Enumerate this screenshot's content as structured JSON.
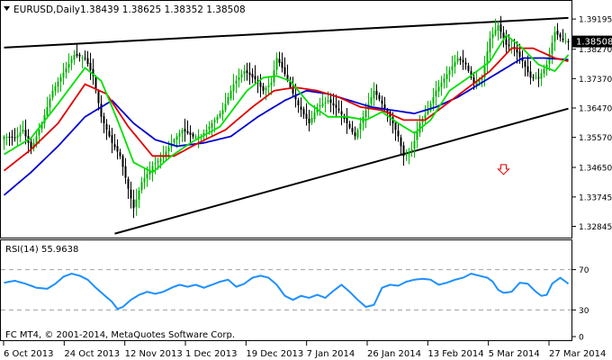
{
  "header": {
    "symbol": "EURUSD,Daily",
    "ohlc": "1.38439 1.38625 1.38352 1.38508"
  },
  "current_price": "1.38508",
  "footer": "FC MT4, © 2001-2014, MetaQuotes Software Corp.",
  "colors": {
    "bull": "#00b400",
    "bear": "#000000",
    "ma_fast": "#00e000",
    "ma_mid": "#e00000",
    "ma_slow": "#0000d0",
    "trendline": "#000000",
    "rsi_line": "#1e90ff",
    "arrow": "#e00000"
  },
  "chart_data": [
    {
      "type": "candlestick",
      "title": "EURUSD,Daily",
      "x_ticks": [
        "6 Oct 2013",
        "24 Oct 2013",
        "12 Nov 2013",
        "1 Dec 2013",
        "19 Dec 2013",
        "7 Jan 2014",
        "26 Jan 2014",
        "13 Feb 2014",
        "5 Mar 2014",
        "27 Mar 2014"
      ],
      "y_ticks": [
        "1.39195",
        "1.38270",
        "1.37370",
        "1.36470",
        "1.35570",
        "1.34650",
        "1.33745",
        "1.32845"
      ],
      "ylim": [
        1.325,
        1.3975
      ],
      "last": 1.38508,
      "close_path": [
        [
          0,
          1.356
        ],
        [
          4,
          1.3555
        ],
        [
          7,
          1.358
        ],
        [
          10,
          1.352
        ],
        [
          14,
          1.36
        ],
        [
          18,
          1.37
        ],
        [
          22,
          1.3755
        ],
        [
          26,
          1.381
        ],
        [
          30,
          1.38
        ],
        [
          33,
          1.3745
        ],
        [
          36,
          1.362
        ],
        [
          40,
          1.354
        ],
        [
          43,
          1.35
        ],
        [
          46,
          1.34
        ],
        [
          48,
          1.334
        ],
        [
          51,
          1.342
        ],
        [
          55,
          1.347
        ],
        [
          59,
          1.35
        ],
        [
          62,
          1.354
        ],
        [
          66,
          1.358
        ],
        [
          70,
          1.356
        ],
        [
          73,
          1.356
        ],
        [
          77,
          1.36
        ],
        [
          81,
          1.364
        ],
        [
          85,
          1.372
        ],
        [
          89,
          1.376
        ],
        [
          93,
          1.3735
        ],
        [
          96,
          1.37
        ],
        [
          99,
          1.3725
        ],
        [
          101,
          1.38
        ],
        [
          103,
          1.377
        ],
        [
          106,
          1.371
        ],
        [
          109,
          1.3655
        ],
        [
          113,
          1.36
        ],
        [
          116,
          1.365
        ],
        [
          120,
          1.367
        ],
        [
          124,
          1.364
        ],
        [
          127,
          1.36
        ],
        [
          130,
          1.356
        ],
        [
          133,
          1.362
        ],
        [
          137,
          1.37
        ],
        [
          140,
          1.366
        ],
        [
          143,
          1.362
        ],
        [
          146,
          1.356
        ],
        [
          148,
          1.35
        ],
        [
          151,
          1.352
        ],
        [
          154,
          1.36
        ],
        [
          157,
          1.364
        ],
        [
          160,
          1.37
        ],
        [
          164,
          1.375
        ],
        [
          168,
          1.38
        ],
        [
          171,
          1.378
        ],
        [
          174,
          1.372
        ],
        [
          177,
          1.374
        ],
        [
          180,
          1.386
        ],
        [
          183,
          1.39
        ],
        [
          186,
          1.384
        ],
        [
          189,
          1.383
        ],
        [
          192,
          1.379
        ],
        [
          195,
          1.374
        ],
        [
          198,
          1.374
        ],
        [
          201,
          1.378
        ],
        [
          204,
          1.388
        ],
        [
          207,
          1.3855
        ],
        [
          209,
          1.3851
        ]
      ],
      "ma_fast_path": [
        [
          0,
          1.3505
        ],
        [
          10,
          1.3555
        ],
        [
          20,
          1.366
        ],
        [
          30,
          1.377
        ],
        [
          36,
          1.373
        ],
        [
          42,
          1.361
        ],
        [
          48,
          1.348
        ],
        [
          55,
          1.345
        ],
        [
          62,
          1.35
        ],
        [
          70,
          1.3545
        ],
        [
          80,
          1.359
        ],
        [
          90,
          1.37
        ],
        [
          96,
          1.374
        ],
        [
          101,
          1.3745
        ],
        [
          106,
          1.373
        ],
        [
          113,
          1.366
        ],
        [
          120,
          1.362
        ],
        [
          127,
          1.362
        ],
        [
          134,
          1.361
        ],
        [
          140,
          1.3635
        ],
        [
          146,
          1.36
        ],
        [
          152,
          1.357
        ],
        [
          158,
          1.361
        ],
        [
          165,
          1.37
        ],
        [
          172,
          1.374
        ],
        [
          180,
          1.379
        ],
        [
          186,
          1.387
        ],
        [
          192,
          1.383
        ],
        [
          198,
          1.378
        ],
        [
          204,
          1.376
        ],
        [
          209,
          1.381
        ]
      ],
      "ma_mid_path": [
        [
          0,
          1.3455
        ],
        [
          10,
          1.352
        ],
        [
          20,
          1.36
        ],
        [
          30,
          1.372
        ],
        [
          38,
          1.369
        ],
        [
          46,
          1.359
        ],
        [
          55,
          1.35
        ],
        [
          63,
          1.35
        ],
        [
          72,
          1.354
        ],
        [
          82,
          1.358
        ],
        [
          92,
          1.365
        ],
        [
          100,
          1.37
        ],
        [
          108,
          1.371
        ],
        [
          116,
          1.37
        ],
        [
          124,
          1.368
        ],
        [
          132,
          1.365
        ],
        [
          140,
          1.364
        ],
        [
          148,
          1.361
        ],
        [
          156,
          1.361
        ],
        [
          164,
          1.366
        ],
        [
          172,
          1.371
        ],
        [
          180,
          1.376
        ],
        [
          188,
          1.383
        ],
        [
          196,
          1.383
        ],
        [
          204,
          1.38
        ],
        [
          209,
          1.379
        ]
      ],
      "ma_slow_path": [
        [
          0,
          1.338
        ],
        [
          10,
          1.345
        ],
        [
          20,
          1.353
        ],
        [
          30,
          1.362
        ],
        [
          40,
          1.367
        ],
        [
          48,
          1.36
        ],
        [
          56,
          1.355
        ],
        [
          64,
          1.353
        ],
        [
          74,
          1.354
        ],
        [
          84,
          1.356
        ],
        [
          94,
          1.362
        ],
        [
          104,
          1.367
        ],
        [
          112,
          1.37
        ],
        [
          120,
          1.369
        ],
        [
          128,
          1.367
        ],
        [
          136,
          1.365
        ],
        [
          144,
          1.364
        ],
        [
          152,
          1.363
        ],
        [
          160,
          1.365
        ],
        [
          168,
          1.368
        ],
        [
          176,
          1.372
        ],
        [
          184,
          1.376
        ],
        [
          192,
          1.38
        ],
        [
          200,
          1.38
        ],
        [
          209,
          1.3795
        ]
      ],
      "trend_top": [
        [
          0,
          1.3832
        ],
        [
          209,
          1.3923
        ]
      ],
      "trend_bottom": [
        [
          41,
          1.3262
        ],
        [
          209,
          1.3645
        ]
      ],
      "down_arrow": [
        185,
        1.346
      ]
    },
    {
      "type": "line",
      "title": "RSI(14) 55.9638",
      "ylim": [
        0,
        100
      ],
      "y_ticks": [
        "70",
        "30",
        "0"
      ],
      "levels": [
        70,
        30
      ],
      "rsi_path": [
        [
          0,
          57
        ],
        [
          4,
          59
        ],
        [
          8,
          56
        ],
        [
          12,
          52
        ],
        [
          16,
          51
        ],
        [
          19,
          56
        ],
        [
          22,
          63
        ],
        [
          25,
          66
        ],
        [
          28,
          64
        ],
        [
          31,
          60
        ],
        [
          34,
          52
        ],
        [
          37,
          45
        ],
        [
          40,
          38
        ],
        [
          42,
          31
        ],
        [
          44,
          33
        ],
        [
          47,
          40
        ],
        [
          50,
          45
        ],
        [
          53,
          48
        ],
        [
          56,
          46
        ],
        [
          59,
          48
        ],
        [
          62,
          52
        ],
        [
          65,
          55
        ],
        [
          68,
          53
        ],
        [
          71,
          55
        ],
        [
          74,
          52
        ],
        [
          77,
          55
        ],
        [
          80,
          58
        ],
        [
          83,
          60
        ],
        [
          86,
          53
        ],
        [
          89,
          56
        ],
        [
          92,
          62
        ],
        [
          95,
          64
        ],
        [
          98,
          62
        ],
        [
          101,
          55
        ],
        [
          104,
          44
        ],
        [
          107,
          40
        ],
        [
          110,
          44
        ],
        [
          113,
          42
        ],
        [
          116,
          45
        ],
        [
          119,
          42
        ],
        [
          122,
          49
        ],
        [
          125,
          55
        ],
        [
          128,
          48
        ],
        [
          131,
          40
        ],
        [
          134,
          33
        ],
        [
          137,
          35
        ],
        [
          140,
          52
        ],
        [
          143,
          55
        ],
        [
          146,
          54
        ],
        [
          149,
          58
        ],
        [
          152,
          60
        ],
        [
          155,
          61
        ],
        [
          158,
          60
        ],
        [
          161,
          55
        ],
        [
          164,
          57
        ],
        [
          167,
          60
        ],
        [
          170,
          62
        ],
        [
          173,
          66
        ],
        [
          176,
          64
        ],
        [
          179,
          62
        ],
        [
          181,
          58
        ],
        [
          183,
          50
        ],
        [
          185,
          47
        ],
        [
          188,
          48
        ],
        [
          191,
          57
        ],
        [
          194,
          56
        ],
        [
          197,
          48
        ],
        [
          199,
          44
        ],
        [
          201,
          45
        ],
        [
          203,
          56
        ],
        [
          206,
          62
        ],
        [
          209,
          56
        ]
      ]
    }
  ]
}
